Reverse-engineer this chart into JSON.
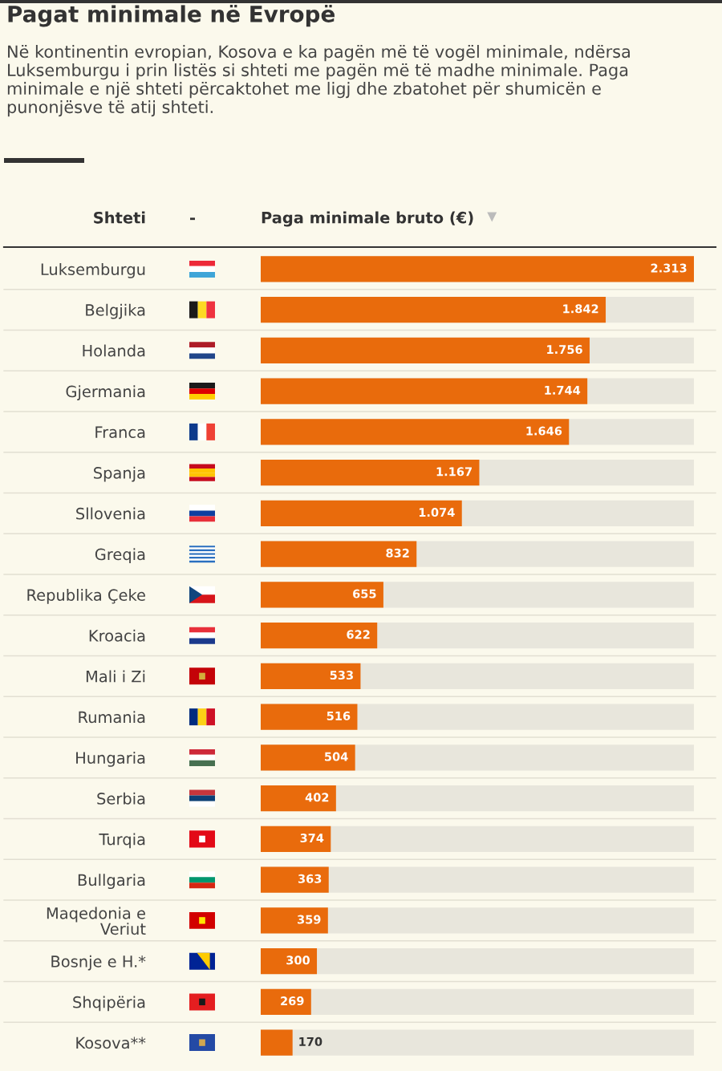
{
  "chart_data": {
    "type": "bar",
    "orientation": "horizontal",
    "title": "Pagat minimale në Evropë",
    "subtitle": "Në kontinentin evropian, Kosova e ka pagën më të vogël minimale, ndërsa Luksemburgu i prin listës si shteti me pagën më të madhe minimale. Paga minimale e një shteti përcaktohet me ligj dhe zbatohet për shumicën e punonjësve të atij shteti.",
    "xlabel": "Paga minimale bruto (€)",
    "ylabel": "Shteti",
    "annotations": [
      "-"
    ],
    "categories": [
      "Luksemburgu",
      "Belgjika",
      "Holanda",
      "Gjermania",
      "Franca",
      "Spanja",
      "Sllovenia",
      "Greqia",
      "Republika Çeke",
      "Kroacia",
      "Mali i Zi",
      "Rumania",
      "Hungaria",
      "Serbia",
      "Turqia",
      "Bullgaria",
      "Maqedonia e Veriut",
      "Bosnje e H.*",
      "Shqipëria",
      "Kosova**"
    ],
    "values": [
      2313,
      1842,
      1756,
      1744,
      1646,
      1167,
      1074,
      832,
      655,
      622,
      533,
      516,
      504,
      402,
      374,
      363,
      359,
      300,
      269,
      170
    ],
    "value_labels": [
      "2.313",
      "1.842",
      "1.756",
      "1.744",
      "1.646",
      "1.167",
      "1.074",
      "832",
      "655",
      "622",
      "533",
      "516",
      "504",
      "402",
      "374",
      "363",
      "359",
      "300",
      "269",
      "170"
    ],
    "color": "#e96b0c",
    "tick_labels": "y"
  }
}
